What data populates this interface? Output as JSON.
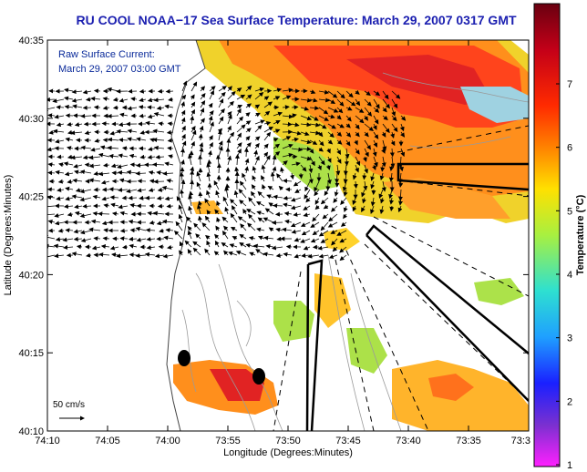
{
  "title": "RU COOL  NOAA−17  Sea Surface Temperature:  March 29, 2007 0317 GMT",
  "overlay": {
    "line1": "Raw Surface Current:",
    "line2": "March 29, 2007 03:00 GMT"
  },
  "y_axis": {
    "label": "Latitude (Degrees:Minutes)",
    "ticks": [
      "40:35",
      "40:30",
      "40:25",
      "40:20",
      "40:15",
      "40:10"
    ]
  },
  "x_axis": {
    "label": "Longitude (Degrees:Minutes)",
    "ticks": [
      "74:10",
      "74:05",
      "74:00",
      "73:55",
      "73:50",
      "73:45",
      "73:40",
      "73:35",
      "73:3"
    ]
  },
  "colorbar": {
    "label": "Temperature (°C)",
    "ticks": [
      "7",
      "6",
      "5",
      "4",
      "3",
      "2",
      "1"
    ],
    "stops": [
      "#6a0010",
      "#c40018",
      "#ff2a00",
      "#ff8c00",
      "#ffe000",
      "#a8f040",
      "#2ee0d0",
      "#1fa0ff",
      "#1a20ff",
      "#7a30d0",
      "#ff20ff"
    ]
  },
  "scale": {
    "label": "50 cm/s"
  },
  "colors": {
    "title": "#1b1fb0",
    "overlay_text": "#0a2a9a",
    "land": "#ffffff"
  }
}
